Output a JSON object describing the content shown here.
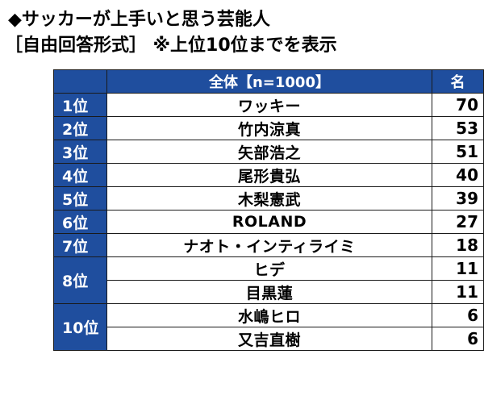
{
  "title": "◆サッカーが上手いと思う芸能人",
  "subtitle": "［自由回答形式］ ※上位10位までを表示",
  "chart_data": {
    "type": "table",
    "header": {
      "rank": "",
      "group": "全体【n=1000】",
      "count": "名"
    },
    "rows": [
      {
        "rank": "1位",
        "name": "ワッキー",
        "count": 70
      },
      {
        "rank": "2位",
        "name": "竹内涼真",
        "count": 53
      },
      {
        "rank": "3位",
        "name": "矢部浩之",
        "count": 51
      },
      {
        "rank": "4位",
        "name": "尾形貴弘",
        "count": 40
      },
      {
        "rank": "5位",
        "name": "木梨憲武",
        "count": 39
      },
      {
        "rank": "6位",
        "name": "ROLAND",
        "count": 27
      },
      {
        "rank": "7位",
        "name": "ナオト・インティライミ",
        "count": 18
      },
      {
        "rank": "8位",
        "name": "ヒデ",
        "count": 11
      },
      {
        "rank": "8位",
        "name": "目黒蓮",
        "count": 11
      },
      {
        "rank": "10位",
        "name": "水嶋ヒロ",
        "count": 6
      },
      {
        "rank": "10位",
        "name": "又吉直樹",
        "count": 6
      }
    ]
  }
}
